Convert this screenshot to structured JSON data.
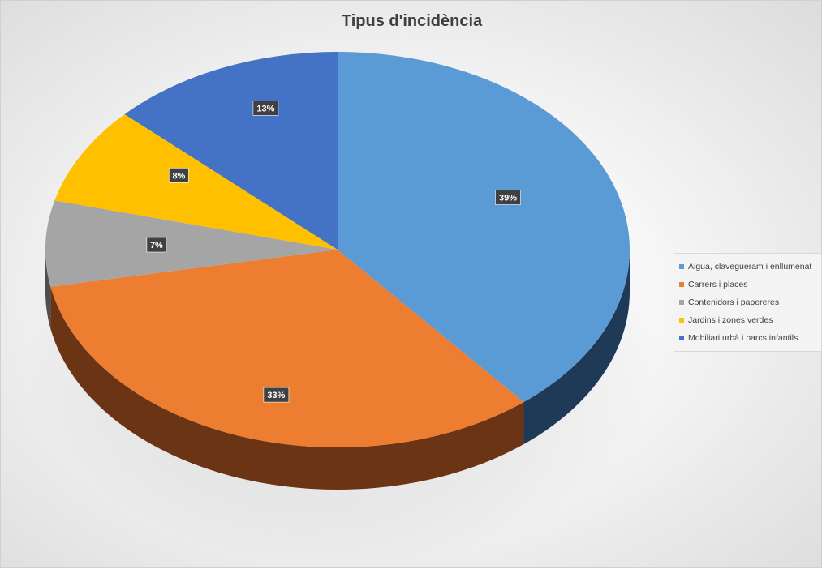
{
  "chart_data": {
    "type": "pie",
    "title": "Tipus d'incidència",
    "categories": [
      "Aigua, clavegueram i enllumenat",
      "Carrers i places",
      "Contenidors i papereres",
      "Jardins i zones verdes",
      "Mobiliari urbà i parcs infantils"
    ],
    "values": [
      39,
      33,
      7,
      8,
      13
    ],
    "labels": [
      "39%",
      "33%",
      "7%",
      "8%",
      "13%"
    ],
    "colors": [
      "#5b9bd5",
      "#ed7d31",
      "#a5a5a5",
      "#ffc000",
      "#4472c4"
    ],
    "legend_position": "right",
    "style": "3d"
  }
}
